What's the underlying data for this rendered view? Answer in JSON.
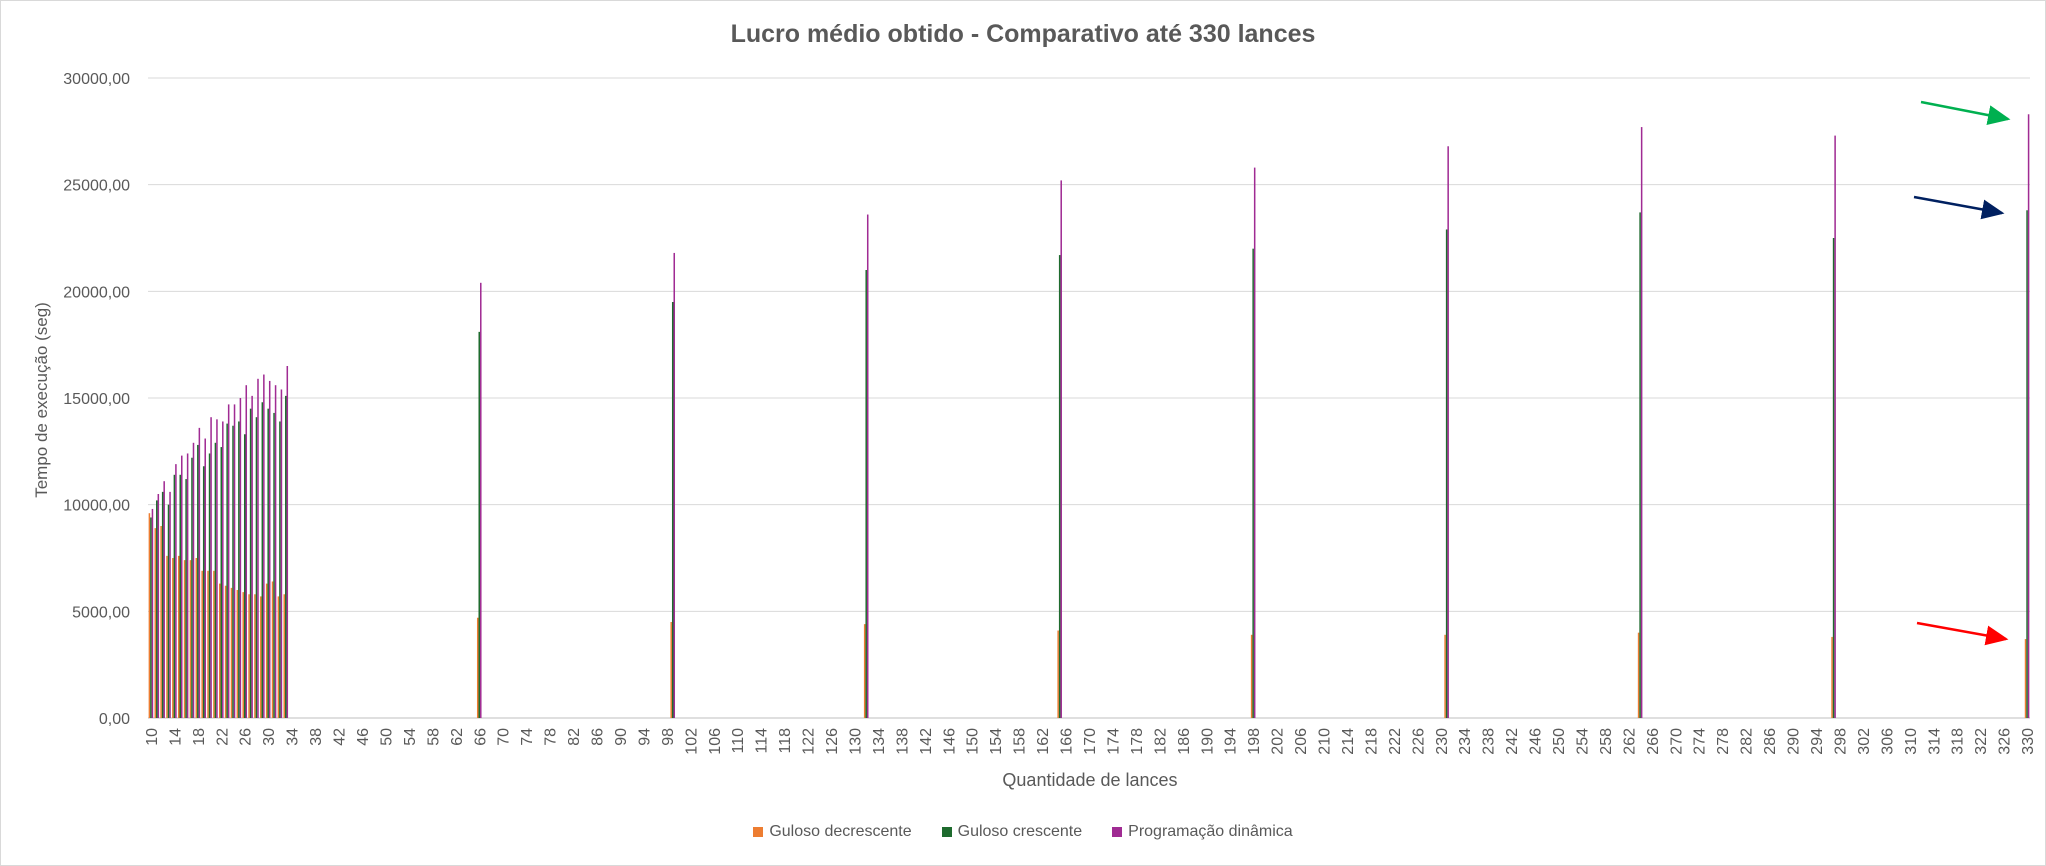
{
  "chart_data": {
    "type": "bar",
    "title": "Lucro médio obtido - Comparativo até 330 lances",
    "xlabel": "Quantidade de lances",
    "ylabel": "Tempo de execução (seg)",
    "ylim": [
      0,
      30000
    ],
    "y_ticks": [
      "0,00",
      "5000,00",
      "10000,00",
      "15000,00",
      "20000,00",
      "25000,00",
      "30000,00"
    ],
    "x_range": [
      10,
      330
    ],
    "x_tick_labels": [
      "10",
      "14",
      "18",
      "22",
      "26",
      "30",
      "34",
      "38",
      "42",
      "46",
      "50",
      "54",
      "58",
      "62",
      "66",
      "70",
      "74",
      "78",
      "82",
      "86",
      "90",
      "94",
      "98",
      "102",
      "106",
      "110",
      "114",
      "118",
      "122",
      "126",
      "130",
      "134",
      "138",
      "142",
      "146",
      "150",
      "154",
      "158",
      "162",
      "166",
      "170",
      "174",
      "178",
      "182",
      "186",
      "190",
      "194",
      "198",
      "202",
      "206",
      "210",
      "214",
      "218",
      "222",
      "226",
      "230",
      "234",
      "238",
      "242",
      "246",
      "250",
      "254",
      "258",
      "262",
      "266",
      "270",
      "274",
      "278",
      "282",
      "286",
      "290",
      "294",
      "298",
      "302",
      "306",
      "310",
      "314",
      "318",
      "322",
      "326",
      "330"
    ],
    "grid": true,
    "legend_position": "bottom",
    "categories": [
      10,
      11,
      12,
      13,
      14,
      15,
      16,
      17,
      18,
      19,
      20,
      21,
      22,
      23,
      24,
      25,
      26,
      27,
      28,
      29,
      30,
      31,
      32,
      33,
      66,
      99,
      132,
      165,
      198,
      231,
      264,
      297,
      330
    ],
    "series": [
      {
        "name": "Guloso decrescente",
        "color": "#ED7D31",
        "values": [
          9600,
          8900,
          9000,
          7600,
          7500,
          7600,
          7400,
          7400,
          7500,
          6900,
          6900,
          6900,
          6300,
          6200,
          6100,
          6000,
          5900,
          5800,
          5800,
          5700,
          6300,
          6400,
          5700,
          5800,
          4700,
          4500,
          4400,
          4100,
          3900,
          3900,
          4000,
          3800,
          3700
        ]
      },
      {
        "name": "Guloso crescente",
        "color": "#1E6B2E",
        "values": [
          9400,
          10200,
          10600,
          10000,
          11400,
          11400,
          11200,
          12200,
          12800,
          11800,
          12400,
          12900,
          12700,
          13800,
          13700,
          13900,
          13300,
          14500,
          14100,
          14800,
          14500,
          14300,
          13900,
          15100,
          18100,
          19500,
          21000,
          21700,
          22000,
          22900,
          23700,
          22500,
          23800
        ]
      },
      {
        "name": "Programação dinâmica",
        "color": "#A02B93",
        "values": [
          9800,
          10500,
          11100,
          10600,
          11900,
          12300,
          12400,
          12900,
          13600,
          13100,
          14100,
          14000,
          13900,
          14700,
          14700,
          15000,
          15600,
          15100,
          15900,
          16100,
          15800,
          15600,
          15400,
          16500,
          20400,
          21800,
          23600,
          25200,
          25800,
          26800,
          27700,
          27300,
          28300
        ]
      }
    ],
    "annotations": [
      {
        "type": "arrow",
        "color": "#00B050",
        "points_to": "Programação dinâmica at 330"
      },
      {
        "type": "arrow",
        "color": "#002060",
        "points_to": "Guloso crescente at 330"
      },
      {
        "type": "arrow",
        "color": "#FF0000",
        "points_to": "Guloso decrescente at 330"
      }
    ]
  }
}
